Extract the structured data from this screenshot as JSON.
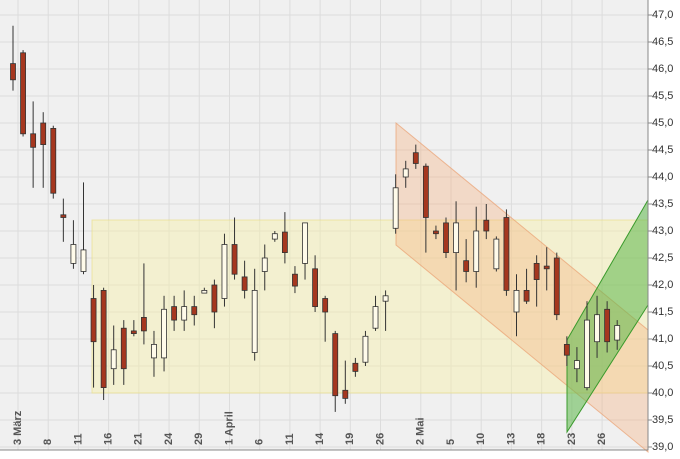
{
  "chart_data": {
    "type": "candlestick",
    "categories": [
      "3 März",
      null,
      null,
      "8",
      null,
      null,
      "11",
      null,
      null,
      "16",
      null,
      null,
      "21",
      null,
      null,
      "24",
      null,
      null,
      "29",
      null,
      null,
      "1 April",
      null,
      null,
      "6",
      null,
      null,
      "11",
      null,
      null,
      "14",
      null,
      null,
      "19",
      null,
      null,
      "26",
      null,
      null,
      null,
      "2 Mai",
      null,
      null,
      "5",
      null,
      null,
      "10",
      null,
      null,
      "13",
      null,
      null,
      "18",
      null,
      null,
      "23",
      null,
      null,
      "26",
      null,
      null
    ],
    "open": [
      46.1,
      46.3,
      44.8,
      45.0,
      44.9,
      43.3,
      42.4,
      42.25,
      41.75,
      41.9,
      40.45,
      41.2,
      41.15,
      41.4,
      40.65,
      40.65,
      41.6,
      41.35,
      41.6,
      41.85,
      42.0,
      41.75,
      42.75,
      42.15,
      40.75,
      42.25,
      42.85,
      42.98,
      42.2,
      42.4,
      42.3,
      41.75,
      41.1,
      40.05,
      40.55,
      40.57,
      41.2,
      41.7,
      43.05,
      44.0,
      44.45,
      44.2,
      43.0,
      43.15,
      42.6,
      42.45,
      42.25,
      43.2,
      42.3,
      43.25,
      41.5,
      41.9,
      42.4,
      42.35,
      42.5,
      40.9,
      40.45,
      40.1,
      40.95,
      41.55,
      40.98
    ],
    "high": [
      46.8,
      46.35,
      45.4,
      45.2,
      44.95,
      43.6,
      43.2,
      43.9,
      42.0,
      41.95,
      41.25,
      41.35,
      41.35,
      42.4,
      41.15,
      41.8,
      41.8,
      41.9,
      41.8,
      41.95,
      42.1,
      42.95,
      43.25,
      42.45,
      42.3,
      42.75,
      43.0,
      43.35,
      42.35,
      43.15,
      42.55,
      41.8,
      41.15,
      40.6,
      40.65,
      41.15,
      41.8,
      41.9,
      44.05,
      44.3,
      44.6,
      44.25,
      43.1,
      43.25,
      43.55,
      42.85,
      43.45,
      43.5,
      42.9,
      43.4,
      42.2,
      42.3,
      42.55,
      42.7,
      42.6,
      41.05,
      40.85,
      41.7,
      41.8,
      41.7,
      41.35
    ],
    "low": [
      45.6,
      44.75,
      43.8,
      43.8,
      43.6,
      42.8,
      42.3,
      42.2,
      40.1,
      39.87,
      40.15,
      40.15,
      41.05,
      40.9,
      40.3,
      40.4,
      41.15,
      41.15,
      41.25,
      41.85,
      41.2,
      41.6,
      42.1,
      41.75,
      40.6,
      41.9,
      42.8,
      42.4,
      41.85,
      42.1,
      41.5,
      40.95,
      39.65,
      39.8,
      40.3,
      40.5,
      41.15,
      41.15,
      42.95,
      43.8,
      44.15,
      42.6,
      42.85,
      42.5,
      41.9,
      42.05,
      41.95,
      42.85,
      42.25,
      41.8,
      41.05,
      41.65,
      41.6,
      41.9,
      41.35,
      40.5,
      40.2,
      40.05,
      40.65,
      40.75,
      40.8
    ],
    "close": [
      45.8,
      44.8,
      44.55,
      44.6,
      43.7,
      43.25,
      42.75,
      42.65,
      40.95,
      40.1,
      40.8,
      40.45,
      41.1,
      41.15,
      40.9,
      41.55,
      41.35,
      41.6,
      41.45,
      41.9,
      41.5,
      42.75,
      42.2,
      41.9,
      41.9,
      42.5,
      42.95,
      42.6,
      41.98,
      43.15,
      41.6,
      41.5,
      39.95,
      39.9,
      40.4,
      41.05,
      41.6,
      41.8,
      43.8,
      44.15,
      44.25,
      43.25,
      42.95,
      42.6,
      43.15,
      42.25,
      43.0,
      43.0,
      42.85,
      41.9,
      41.9,
      41.7,
      42.1,
      42.3,
      41.45,
      40.7,
      40.6,
      41.35,
      41.45,
      40.95,
      41.25
    ],
    "up_color": "#fffbea",
    "down_color": "#a5371f",
    "ylim": [
      39,
      47
    ],
    "yticks": [
      {
        "value": 39,
        "label": "39,0"
      },
      {
        "value": 39.5,
        "label": "39,5"
      },
      {
        "value": 40,
        "label": "40,0"
      },
      {
        "value": 40.5,
        "label": "40,5"
      },
      {
        "value": 41,
        "label": "41,0"
      },
      {
        "value": 41.5,
        "label": "41,5"
      },
      {
        "value": 42,
        "label": "42,0"
      },
      {
        "value": 42.5,
        "label": "42,5"
      },
      {
        "value": 43,
        "label": "43,0"
      },
      {
        "value": 43.5,
        "label": "43,5"
      },
      {
        "value": 44,
        "label": "44,0"
      },
      {
        "value": 44.5,
        "label": "44,5"
      },
      {
        "value": 45,
        "label": "45,0"
      },
      {
        "value": 45.5,
        "label": "45,5"
      },
      {
        "value": 46,
        "label": "46,0"
      },
      {
        "value": 46.5,
        "label": "46,5"
      },
      {
        "value": 47,
        "label": "47,0"
      }
    ],
    "grid": true
  }
}
